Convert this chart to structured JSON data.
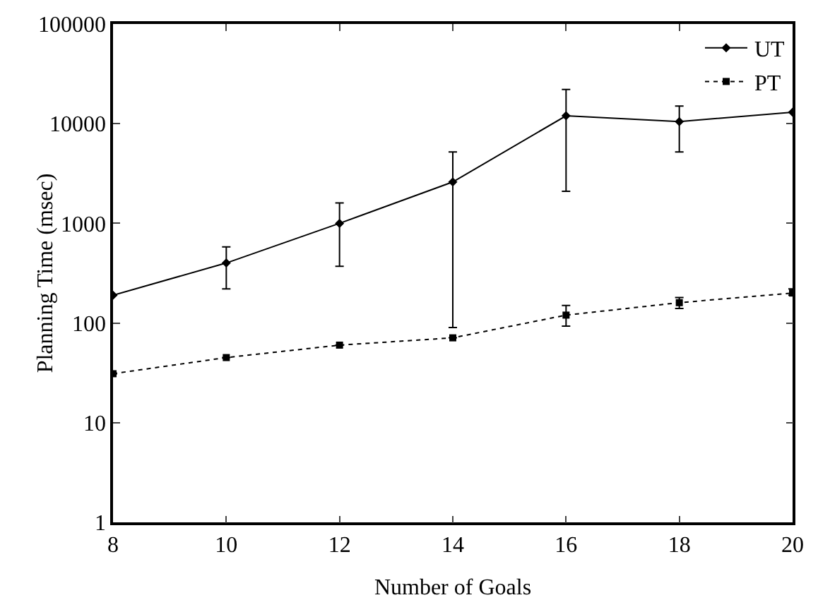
{
  "chart_data": {
    "type": "line",
    "xlabel": "Number of Goals",
    "ylabel": "Planning Time (msec)",
    "x": [
      8,
      10,
      12,
      14,
      16,
      18,
      20
    ],
    "series": [
      {
        "name": "UT",
        "color": "#000000",
        "marker": "diamond",
        "line_style": "solid",
        "values": [
          190,
          400,
          1000,
          2600,
          12000,
          10500,
          13000
        ],
        "errors": [
          null,
          [
            220,
            580
          ],
          [
            370,
            1600
          ],
          [
            90,
            5200
          ],
          [
            2100,
            22000
          ],
          [
            5200,
            15000
          ],
          null
        ]
      },
      {
        "name": "PT",
        "color": "#000000",
        "marker": "square",
        "line_style": "dotted",
        "values": [
          31,
          45,
          60,
          71,
          120,
          160,
          200
        ],
        "errors": [
          null,
          null,
          null,
          null,
          [
            93,
            150
          ],
          [
            140,
            180
          ],
          [
            190,
            220
          ]
        ]
      }
    ],
    "log": "y",
    "xlim": [
      8,
      20
    ],
    "xticks": [
      8,
      10,
      12,
      14,
      16,
      18,
      20
    ],
    "ylim": [
      1,
      100000
    ],
    "yticks": [
      1,
      10,
      100,
      1000,
      10000,
      100000
    ],
    "grid": false,
    "legend": "top right"
  }
}
